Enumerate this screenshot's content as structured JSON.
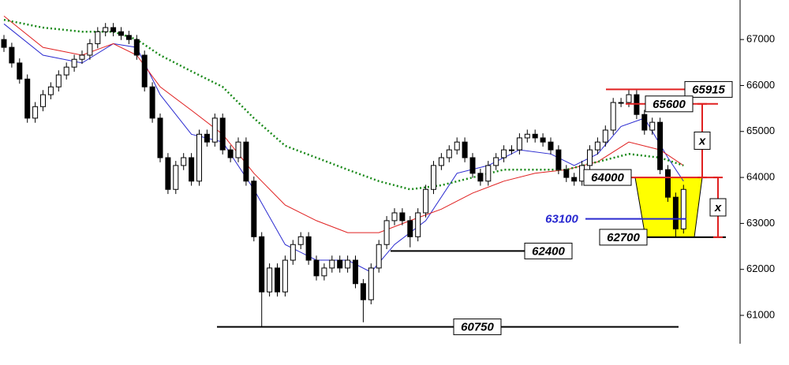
{
  "chart_data": {
    "type": "candlestick",
    "open": [
      67000,
      66830,
      66490,
      66140,
      65290,
      65540,
      65800,
      65970,
      66230,
      66400,
      66570,
      66660,
      66910,
      67170,
      67260,
      67170,
      67090,
      67000,
      66660,
      65970,
      65290,
      64430,
      63740,
      64260,
      64430,
      63920,
      64940,
      64770,
      65290,
      64600,
      64430,
      64770,
      63920,
      62710,
      61510,
      62030,
      61510,
      62200,
      62540,
      62710,
      62200,
      61860,
      62030,
      62200,
      62030,
      62200,
      61690,
      61340,
      62030,
      62540,
      63060,
      63230,
      63060,
      62710,
      63230,
      63740,
      64260,
      64430,
      64600,
      64770,
      64430,
      64090,
      63920,
      64260,
      64430,
      64600,
      64600,
      64860,
      64940,
      64860,
      64770,
      64600,
      64170,
      64000,
      63920,
      64260,
      64600,
      64770,
      65030,
      65630,
      65630,
      65800,
      65370,
      65030,
      65200,
      64170,
      63570,
      62880
    ],
    "high": [
      67100,
      66930,
      66590,
      66240,
      65640,
      65900,
      66070,
      66330,
      66500,
      66670,
      66760,
      67010,
      67270,
      67360,
      67360,
      67270,
      67190,
      67100,
      66760,
      66070,
      65390,
      64530,
      64360,
      64530,
      64530,
      65040,
      65040,
      65390,
      65390,
      64700,
      64870,
      64870,
      64020,
      62810,
      62130,
      62130,
      62300,
      62640,
      62810,
      62810,
      62300,
      62130,
      62300,
      62300,
      62300,
      62300,
      61790,
      62130,
      62640,
      63160,
      63330,
      63330,
      63160,
      63330,
      63840,
      64360,
      64530,
      64700,
      64870,
      64870,
      64530,
      64190,
      64360,
      64530,
      64700,
      64700,
      64960,
      65040,
      65040,
      64960,
      64870,
      64700,
      64270,
      64100,
      64360,
      64700,
      64870,
      65130,
      65730,
      65730,
      65915,
      65900,
      65470,
      65300,
      65300,
      64270,
      63670,
      63840
    ],
    "low": [
      66730,
      66390,
      66040,
      65190,
      65190,
      65440,
      65700,
      65870,
      66130,
      66300,
      66470,
      66560,
      66810,
      67070,
      67070,
      66990,
      66900,
      66560,
      65870,
      65190,
      64330,
      63640,
      63640,
      64160,
      63820,
      63820,
      64670,
      64670,
      64500,
      64330,
      64330,
      63820,
      62610,
      60750,
      61410,
      61410,
      61410,
      62100,
      62440,
      62100,
      61760,
      61760,
      61930,
      61930,
      61930,
      61590,
      60850,
      61240,
      61930,
      62440,
      62960,
      62960,
      62480,
      62610,
      63130,
      63640,
      64160,
      64330,
      64500,
      64330,
      63990,
      63820,
      63820,
      64160,
      64330,
      64500,
      64500,
      64760,
      64760,
      64670,
      64500,
      64070,
      63900,
      63820,
      63820,
      64160,
      64500,
      64670,
      64930,
      65530,
      65530,
      65270,
      64930,
      64930,
      64070,
      63470,
      62700,
      62780
    ],
    "close": [
      66830,
      66490,
      66140,
      65290,
      65540,
      65800,
      65970,
      66230,
      66400,
      66570,
      66660,
      66910,
      67170,
      67260,
      67170,
      67090,
      67000,
      66660,
      65970,
      65290,
      64430,
      63740,
      64260,
      64430,
      63920,
      64940,
      64770,
      65290,
      64600,
      64430,
      64770,
      63920,
      62710,
      61510,
      62030,
      61510,
      62200,
      62540,
      62710,
      62200,
      61860,
      62030,
      62200,
      62030,
      62200,
      61690,
      61340,
      62030,
      62540,
      63060,
      63230,
      63060,
      62710,
      63230,
      63740,
      64260,
      64430,
      64600,
      64770,
      64430,
      64090,
      63920,
      64260,
      64430,
      64600,
      64600,
      64860,
      64940,
      64860,
      64770,
      64600,
      64170,
      64000,
      63920,
      64260,
      64600,
      64770,
      65030,
      65630,
      65630,
      65800,
      65370,
      65030,
      65200,
      64170,
      63570,
      62880,
      63740
    ],
    "up_color": "#ffffff",
    "down_color": "#000000",
    "lines": [
      {
        "color": "#2a2ad0",
        "dash": false,
        "x": [
          0,
          5,
          10,
          14,
          17,
          20,
          24,
          28,
          32,
          36,
          40,
          44,
          47,
          50,
          54,
          58,
          62,
          66,
          70,
          73,
          76,
          79,
          82,
          85,
          87
        ],
        "values": [
          67340,
          66660,
          66490,
          66910,
          66830,
          65800,
          64940,
          64770,
          63740,
          62540,
          62200,
          62200,
          61940,
          62540,
          63060,
          64090,
          64260,
          64600,
          64510,
          64260,
          64510,
          65110,
          65290,
          64430,
          63920
        ]
      },
      {
        "color": "#e02020",
        "dash": false,
        "x": [
          0,
          5,
          10,
          14,
          17,
          20,
          24,
          28,
          32,
          36,
          40,
          44,
          48,
          52,
          56,
          60,
          64,
          68,
          72,
          76,
          80,
          84,
          87
        ],
        "values": [
          67510,
          66830,
          66660,
          66910,
          66660,
          65970,
          65460,
          64940,
          64090,
          63400,
          63060,
          62800,
          62800,
          63060,
          63310,
          63660,
          63920,
          64090,
          64170,
          64340,
          64770,
          64600,
          64260
        ]
      },
      {
        "color": "#1a8a1a",
        "dash": true,
        "x": [
          0,
          5,
          10,
          14,
          17,
          20,
          24,
          28,
          32,
          36,
          40,
          44,
          48,
          52,
          56,
          60,
          64,
          68,
          72,
          76,
          80,
          84,
          87
        ],
        "values": [
          67430,
          67260,
          67170,
          67170,
          67000,
          66660,
          66310,
          65970,
          65290,
          64690,
          64430,
          64170,
          63920,
          63740,
          63830,
          64000,
          64170,
          64170,
          64170,
          64340,
          64510,
          64430,
          64260
        ]
      }
    ],
    "ylim": [
      59920,
      67860
    ],
    "yticks": [
      61000,
      62000,
      63000,
      64000,
      65000,
      66000,
      67000
    ],
    "levels": [
      {
        "value": 65915,
        "color": "#e02020",
        "label_color": "#000000"
      },
      {
        "value": 65600,
        "color": "#e02020",
        "label_color": "#000000"
      },
      {
        "value": 64000,
        "color": "#e02020",
        "label_color": "#000000"
      },
      {
        "value": 63100,
        "color": "#2a2ad0",
        "label_color": "#2a2ad0"
      },
      {
        "value": 62700,
        "color": "#000000",
        "label_color": "#000000"
      },
      {
        "value": 62400,
        "color": "#000000",
        "label_color": "#000000"
      },
      {
        "value": 60750,
        "color": "#000000",
        "label_color": "#000000"
      }
    ],
    "zone_color": "#ffff00",
    "measures": [
      "x",
      "x"
    ]
  }
}
